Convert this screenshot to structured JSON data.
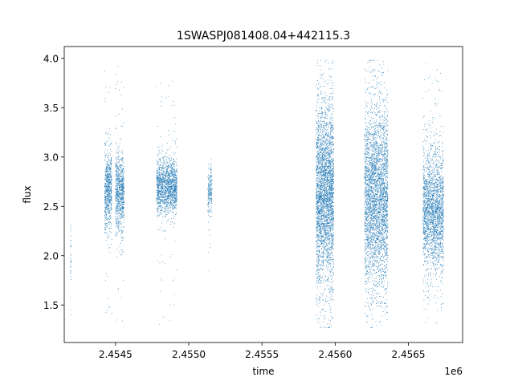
{
  "chart_data": {
    "type": "scatter",
    "title": "1SWASPJ081408.04+442115.3",
    "xlabel": "time",
    "ylabel": "flux",
    "x_offset_label": "1e6",
    "xlim": [
      2454150,
      2456870
    ],
    "ylim": [
      1.12,
      4.12
    ],
    "x_ticks": [
      2454500,
      2455000,
      2455500,
      2456000,
      2456500
    ],
    "x_tick_labels": [
      "2.4545",
      "2.4550",
      "2.4555",
      "2.4560",
      "2.4565"
    ],
    "y_ticks": [
      1.5,
      2.0,
      2.5,
      3.0,
      3.5,
      4.0
    ],
    "y_tick_labels": [
      "1.5",
      "2.0",
      "2.5",
      "3.0",
      "3.5",
      "4.0"
    ],
    "grid": false,
    "marker_color": "#1f77b4",
    "clusters": [
      {
        "x_range": [
          2454190,
          2454200
        ],
        "y_center": 2.0,
        "y_spread": 0.3,
        "y_min": 1.4,
        "y_max": 2.3,
        "count": 30
      },
      {
        "x_range": [
          2454425,
          2454475
        ],
        "y_center": 2.65,
        "y_spread": 0.2,
        "y_min": 1.25,
        "y_max": 3.95,
        "count": 700
      },
      {
        "x_range": [
          2454500,
          2454560
        ],
        "y_center": 2.65,
        "y_spread": 0.2,
        "y_min": 1.3,
        "y_max": 3.95,
        "count": 800
      },
      {
        "x_range": [
          2454780,
          2454920
        ],
        "y_center": 2.7,
        "y_spread": 0.14,
        "y_min": 1.3,
        "y_max": 3.8,
        "count": 1500
      },
      {
        "x_range": [
          2455130,
          2455160
        ],
        "y_center": 2.65,
        "y_spread": 0.12,
        "y_min": 1.8,
        "y_max": 3.05,
        "count": 200
      },
      {
        "x_range": [
          2455870,
          2455990
        ],
        "y_center": 2.65,
        "y_spread": 0.45,
        "y_min": 1.27,
        "y_max": 3.98,
        "count": 3200
      },
      {
        "x_range": [
          2456200,
          2456360
        ],
        "y_center": 2.6,
        "y_spread": 0.45,
        "y_min": 1.27,
        "y_max": 3.98,
        "count": 3400
      },
      {
        "x_range": [
          2456600,
          2456740
        ],
        "y_center": 2.45,
        "y_spread": 0.3,
        "y_min": 1.27,
        "y_max": 3.95,
        "count": 2200
      }
    ]
  }
}
